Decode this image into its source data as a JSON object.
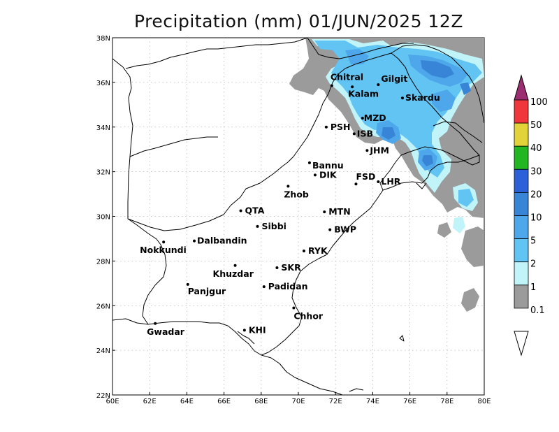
{
  "title": "Precipitation (mm) 01/JUN/2025 12Z",
  "map": {
    "lon_range": [
      60,
      80
    ],
    "lat_range": [
      22,
      38
    ],
    "lon_ticks": [
      {
        "value": 60,
        "label": "60E"
      },
      {
        "value": 62,
        "label": "62E"
      },
      {
        "value": 64,
        "label": "64E"
      },
      {
        "value": 66,
        "label": "66E"
      },
      {
        "value": 68,
        "label": "68E"
      },
      {
        "value": 70,
        "label": "70E"
      },
      {
        "value": 72,
        "label": "72E"
      },
      {
        "value": 74,
        "label": "74E"
      },
      {
        "value": 76,
        "label": "76E"
      },
      {
        "value": 78,
        "label": "78E"
      },
      {
        "value": 80,
        "label": "80E"
      }
    ],
    "lat_ticks": [
      {
        "value": 22,
        "label": "22N"
      },
      {
        "value": 24,
        "label": "24N"
      },
      {
        "value": 26,
        "label": "26N"
      },
      {
        "value": 28,
        "label": "28N"
      },
      {
        "value": 30,
        "label": "30N"
      },
      {
        "value": 32,
        "label": "32N"
      },
      {
        "value": 34,
        "label": "34N"
      },
      {
        "value": 36,
        "label": "36N"
      },
      {
        "value": 38,
        "label": "38N"
      }
    ],
    "grid": true,
    "cities": [
      {
        "name": "Chitral",
        "lon": 71.8,
        "lat": 35.85
      },
      {
        "name": "Gilgit",
        "lon": 74.3,
        "lat": 35.9
      },
      {
        "name": "Kalam",
        "lon": 72.9,
        "lat": 35.8
      },
      {
        "name": "Skardu",
        "lon": 75.6,
        "lat": 35.3
      },
      {
        "name": "MZD",
        "lon": 73.45,
        "lat": 34.4
      },
      {
        "name": "PSH",
        "lon": 71.5,
        "lat": 34.0
      },
      {
        "name": "ISB",
        "lon": 73.0,
        "lat": 33.7
      },
      {
        "name": "JHM",
        "lon": 73.7,
        "lat": 32.95
      },
      {
        "name": "Bannu",
        "lon": 70.6,
        "lat": 32.4
      },
      {
        "name": "DIK",
        "lon": 70.9,
        "lat": 31.85
      },
      {
        "name": "FSD",
        "lon": 73.1,
        "lat": 31.45
      },
      {
        "name": "LHR",
        "lon": 74.3,
        "lat": 31.55
      },
      {
        "name": "Zhob",
        "lon": 69.45,
        "lat": 31.35
      },
      {
        "name": "QTA",
        "lon": 66.9,
        "lat": 30.25
      },
      {
        "name": "MTN",
        "lon": 71.4,
        "lat": 30.2
      },
      {
        "name": "Sibbi",
        "lon": 67.8,
        "lat": 29.55
      },
      {
        "name": "BWP",
        "lon": 71.7,
        "lat": 29.4
      },
      {
        "name": "Dalbandin",
        "lon": 64.4,
        "lat": 28.9
      },
      {
        "name": "Nokkundi",
        "lon": 62.75,
        "lat": 28.85
      },
      {
        "name": "RYK",
        "lon": 70.3,
        "lat": 28.45
      },
      {
        "name": "Khuzdar",
        "lon": 66.6,
        "lat": 27.8
      },
      {
        "name": "SKR",
        "lon": 68.85,
        "lat": 27.7
      },
      {
        "name": "Panjgur",
        "lon": 64.05,
        "lat": 26.95
      },
      {
        "name": "Padidan",
        "lon": 68.15,
        "lat": 26.85
      },
      {
        "name": "Chhor",
        "lon": 69.75,
        "lat": 25.9
      },
      {
        "name": "Gwadar",
        "lon": 62.3,
        "lat": 25.2
      },
      {
        "name": "KHI",
        "lon": 67.1,
        "lat": 24.9
      }
    ]
  },
  "colorbar": {
    "levels": [
      {
        "label": "100",
        "color": "#f0363b"
      },
      {
        "label": "50",
        "color": "#e3d33a"
      },
      {
        "label": "40",
        "color": "#22b623"
      },
      {
        "label": "30",
        "color": "#2b60d9"
      },
      {
        "label": "20",
        "color": "#3884d6"
      },
      {
        "label": "10",
        "color": "#4ea7ea"
      },
      {
        "label": "5",
        "color": "#62c4f2"
      },
      {
        "label": "2",
        "color": "#c0f4f9"
      },
      {
        "label": "1",
        "color": "#9b9b9b"
      },
      {
        "label": "0.1",
        "color": "#ffffff"
      }
    ],
    "top_arrow_color": "#9b2d71"
  }
}
